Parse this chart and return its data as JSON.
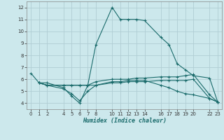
{
  "xlabel": "Humidex (Indice chaleur)",
  "background_color": "#cce8ec",
  "grid_color": "#b0cdd4",
  "line_color": "#1a6b6b",
  "xlim": [
    -0.5,
    23.5
  ],
  "ylim": [
    3.5,
    12.5
  ],
  "yticks": [
    4,
    5,
    6,
    7,
    8,
    9,
    10,
    11,
    12
  ],
  "xticks": [
    0,
    1,
    2,
    4,
    5,
    6,
    7,
    8,
    10,
    11,
    12,
    13,
    14,
    16,
    17,
    18,
    19,
    20,
    22,
    23
  ],
  "curve1_x": [
    0,
    1,
    2,
    4,
    5,
    6,
    7,
    8,
    10,
    11,
    12,
    13,
    14,
    16,
    17,
    18,
    19,
    20,
    22,
    23
  ],
  "curve1_y": [
    6.5,
    5.7,
    5.7,
    5.3,
    4.6,
    4.0,
    5.5,
    8.9,
    12.0,
    11.0,
    11.0,
    11.0,
    10.9,
    9.5,
    8.9,
    7.3,
    6.8,
    6.3,
    6.1,
    4.1
  ],
  "curve2_x": [
    1,
    2,
    4,
    5,
    6,
    7,
    8,
    10,
    11,
    12,
    13,
    14,
    16,
    17,
    18,
    19,
    20,
    22,
    23
  ],
  "curve2_y": [
    5.7,
    5.5,
    5.5,
    5.5,
    5.5,
    5.5,
    5.8,
    6.0,
    6.0,
    6.0,
    6.1,
    6.1,
    6.2,
    6.2,
    6.2,
    6.3,
    6.4,
    4.7,
    4.1
  ],
  "curve3_x": [
    1,
    2,
    4,
    5,
    6,
    7,
    8,
    10,
    11,
    12,
    13,
    14,
    16,
    17,
    18,
    19,
    20,
    22,
    23
  ],
  "curve3_y": [
    5.7,
    5.5,
    5.5,
    5.5,
    5.5,
    5.5,
    5.5,
    5.7,
    5.7,
    5.8,
    5.8,
    5.8,
    5.9,
    5.9,
    5.9,
    5.9,
    6.0,
    4.4,
    4.1
  ],
  "curve4_x": [
    1,
    2,
    4,
    5,
    6,
    7,
    8,
    10,
    11,
    12,
    13,
    14,
    16,
    17,
    18,
    19,
    20,
    22,
    23
  ],
  "curve4_y": [
    5.7,
    5.5,
    5.2,
    4.8,
    4.2,
    5.0,
    5.5,
    5.8,
    5.8,
    5.9,
    5.9,
    5.9,
    5.5,
    5.3,
    5.0,
    4.8,
    4.7,
    4.4,
    4.1
  ]
}
